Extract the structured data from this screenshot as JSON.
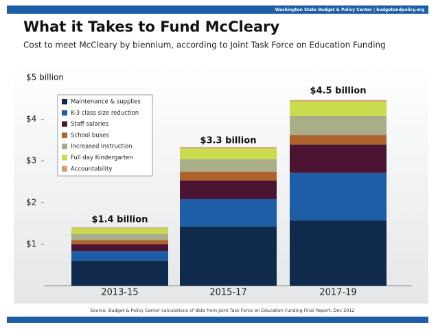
{
  "chart_data": {
    "type": "stacked_bar",
    "header_note": "Washington State Budget & Policy Center | budgetandpolicy.org",
    "title": "What it Takes to Fund McCleary",
    "subtitle": "Cost to meet McCleary by biennium, according to Joint Task Force on Education Funding",
    "categories": [
      "2013-15",
      "2015-17",
      "2017-19"
    ],
    "series": [
      {
        "name": "Maintenance & supplies",
        "color": "#0f2a4a",
        "values": [
          0.6,
          1.42,
          1.57
        ]
      },
      {
        "name": "K-3 class size reduction",
        "color": "#1d5ea6",
        "values": [
          0.23,
          0.66,
          1.14
        ]
      },
      {
        "name": "Staff salaries",
        "color": "#4b1432",
        "values": [
          0.17,
          0.45,
          0.68
        ]
      },
      {
        "name": "School buses",
        "color": "#ad632c",
        "values": [
          0.1,
          0.21,
          0.23
        ]
      },
      {
        "name": "Increased Instruction",
        "color": "#a9ad88",
        "values": [
          0.15,
          0.3,
          0.46
        ]
      },
      {
        "name": "Full day Kindergarten",
        "color": "#cadc4c",
        "values": [
          0.13,
          0.26,
          0.35
        ]
      },
      {
        "name": "Accountability",
        "color": "#d69d6e",
        "values": [
          0.02,
          0.03,
          0.03
        ]
      }
    ],
    "totals": {
      "values": [
        1.4,
        3.3,
        4.5
      ],
      "value_labels": [
        "$1.4 billion",
        "$3.3 billion",
        "$4.5 billion"
      ]
    },
    "ylim": [
      0,
      5
    ],
    "yticks": [
      {
        "value": 1,
        "label": "$1"
      },
      {
        "value": 2,
        "label": "$2"
      },
      {
        "value": 3,
        "label": "$3"
      },
      {
        "value": 4,
        "label": "$4"
      },
      {
        "value": 5,
        "label": "$5 billion"
      }
    ],
    "legend": "upper left",
    "source": "Source: Budget & Policy Center calculations of data from Joint Task Force on Education Funding Final Report, Dec 2012"
  }
}
